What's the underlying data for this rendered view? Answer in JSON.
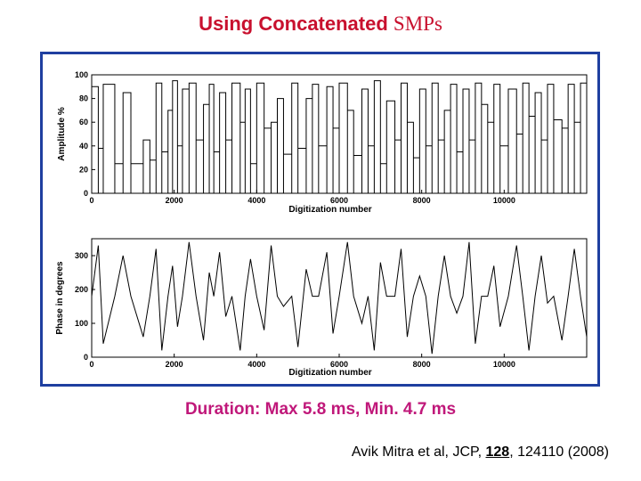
{
  "slide": {
    "title_sans": "Using Concatenated",
    "title_serif": "SMPs",
    "duration_text": "Duration: Max 5.8 ms,  Min. 4.7 ms",
    "citation_prefix": "Avik Mitra et al, JCP,",
    "citation_volume": "128",
    "citation_suffix": ", 124110 (2008)"
  },
  "colors": {
    "title": "#c8102e",
    "duration": "#c0187a",
    "frame": "#1f3fa0",
    "trace": "#000000"
  },
  "chart_data": [
    {
      "type": "line",
      "xlabel": "Digitization number",
      "ylabel": "Amplitude %",
      "xlim": [
        0,
        12000
      ],
      "ylim": [
        0,
        100
      ],
      "xticks": [
        0,
        2000,
        4000,
        6000,
        8000,
        10000
      ],
      "yticks": [
        0,
        20,
        40,
        60,
        80,
        100
      ],
      "grid": false,
      "style": "stepped pulse amplitudes",
      "x": [
        0,
        160,
        280,
        560,
        760,
        950,
        1250,
        1410,
        1560,
        1700,
        1850,
        1960,
        2080,
        2200,
        2360,
        2530,
        2710,
        2850,
        2960,
        3100,
        3250,
        3400,
        3600,
        3720,
        3850,
        4000,
        4180,
        4350,
        4500,
        4650,
        4850,
        5000,
        5200,
        5350,
        5500,
        5700,
        5850,
        6000,
        6200,
        6350,
        6550,
        6700,
        6850,
        7000,
        7150,
        7350,
        7500,
        7650,
        7800,
        7950,
        8100,
        8250,
        8400,
        8550,
        8700,
        8850,
        9000,
        9150,
        9300,
        9450,
        9600,
        9750,
        9900,
        10100,
        10300,
        10450,
        10600,
        10750,
        10900,
        11050,
        11200,
        11400,
        11550,
        11700,
        11850,
        12000
      ],
      "y": [
        90,
        38,
        92,
        25,
        85,
        25,
        45,
        28,
        93,
        35,
        70,
        95,
        40,
        88,
        93,
        45,
        75,
        92,
        35,
        85,
        45,
        93,
        60,
        88,
        25,
        93,
        55,
        60,
        80,
        33,
        93,
        38,
        80,
        92,
        40,
        90,
        55,
        93,
        70,
        32,
        88,
        40,
        95,
        25,
        78,
        45,
        93,
        60,
        30,
        88,
        40,
        93,
        45,
        70,
        92,
        35,
        88,
        45,
        93,
        75,
        60,
        92,
        40,
        88,
        50,
        93,
        65,
        85,
        45,
        92,
        62,
        55,
        92,
        60,
        93,
        93
      ]
    },
    {
      "type": "line",
      "xlabel": "Digitization number",
      "ylabel": "Phase in degrees",
      "xlim": [
        0,
        12000
      ],
      "ylim": [
        0,
        350
      ],
      "xticks": [
        0,
        2000,
        4000,
        6000,
        8000,
        10000
      ],
      "yticks": [
        0,
        100,
        200,
        300
      ],
      "grid": false,
      "style": "phase sequence",
      "x": [
        0,
        160,
        280,
        560,
        760,
        950,
        1250,
        1410,
        1560,
        1700,
        1850,
        1960,
        2080,
        2200,
        2360,
        2530,
        2710,
        2850,
        2960,
        3100,
        3250,
        3400,
        3600,
        3720,
        3850,
        4000,
        4180,
        4350,
        4500,
        4650,
        4850,
        5000,
        5200,
        5350,
        5500,
        5700,
        5850,
        6000,
        6200,
        6350,
        6550,
        6700,
        6850,
        7000,
        7150,
        7350,
        7500,
        7650,
        7800,
        7950,
        8100,
        8250,
        8400,
        8550,
        8700,
        8850,
        9000,
        9150,
        9300,
        9450,
        9600,
        9750,
        9900,
        10100,
        10300,
        10450,
        10600,
        10750,
        10900,
        11050,
        11200,
        11400,
        11550,
        11700,
        11850,
        12000
      ],
      "y": [
        180,
        330,
        40,
        180,
        300,
        180,
        60,
        180,
        320,
        20,
        180,
        270,
        90,
        180,
        340,
        180,
        50,
        250,
        180,
        310,
        120,
        180,
        20,
        180,
        290,
        180,
        80,
        330,
        180,
        150,
        180,
        30,
        260,
        180,
        180,
        310,
        70,
        180,
        340,
        180,
        100,
        180,
        20,
        280,
        180,
        180,
        320,
        60,
        180,
        240,
        180,
        10,
        180,
        300,
        180,
        130,
        180,
        340,
        40,
        180,
        180,
        270,
        90,
        180,
        330,
        180,
        20,
        180,
        300,
        160,
        180,
        50,
        180,
        320,
        180,
        60
      ]
    }
  ]
}
